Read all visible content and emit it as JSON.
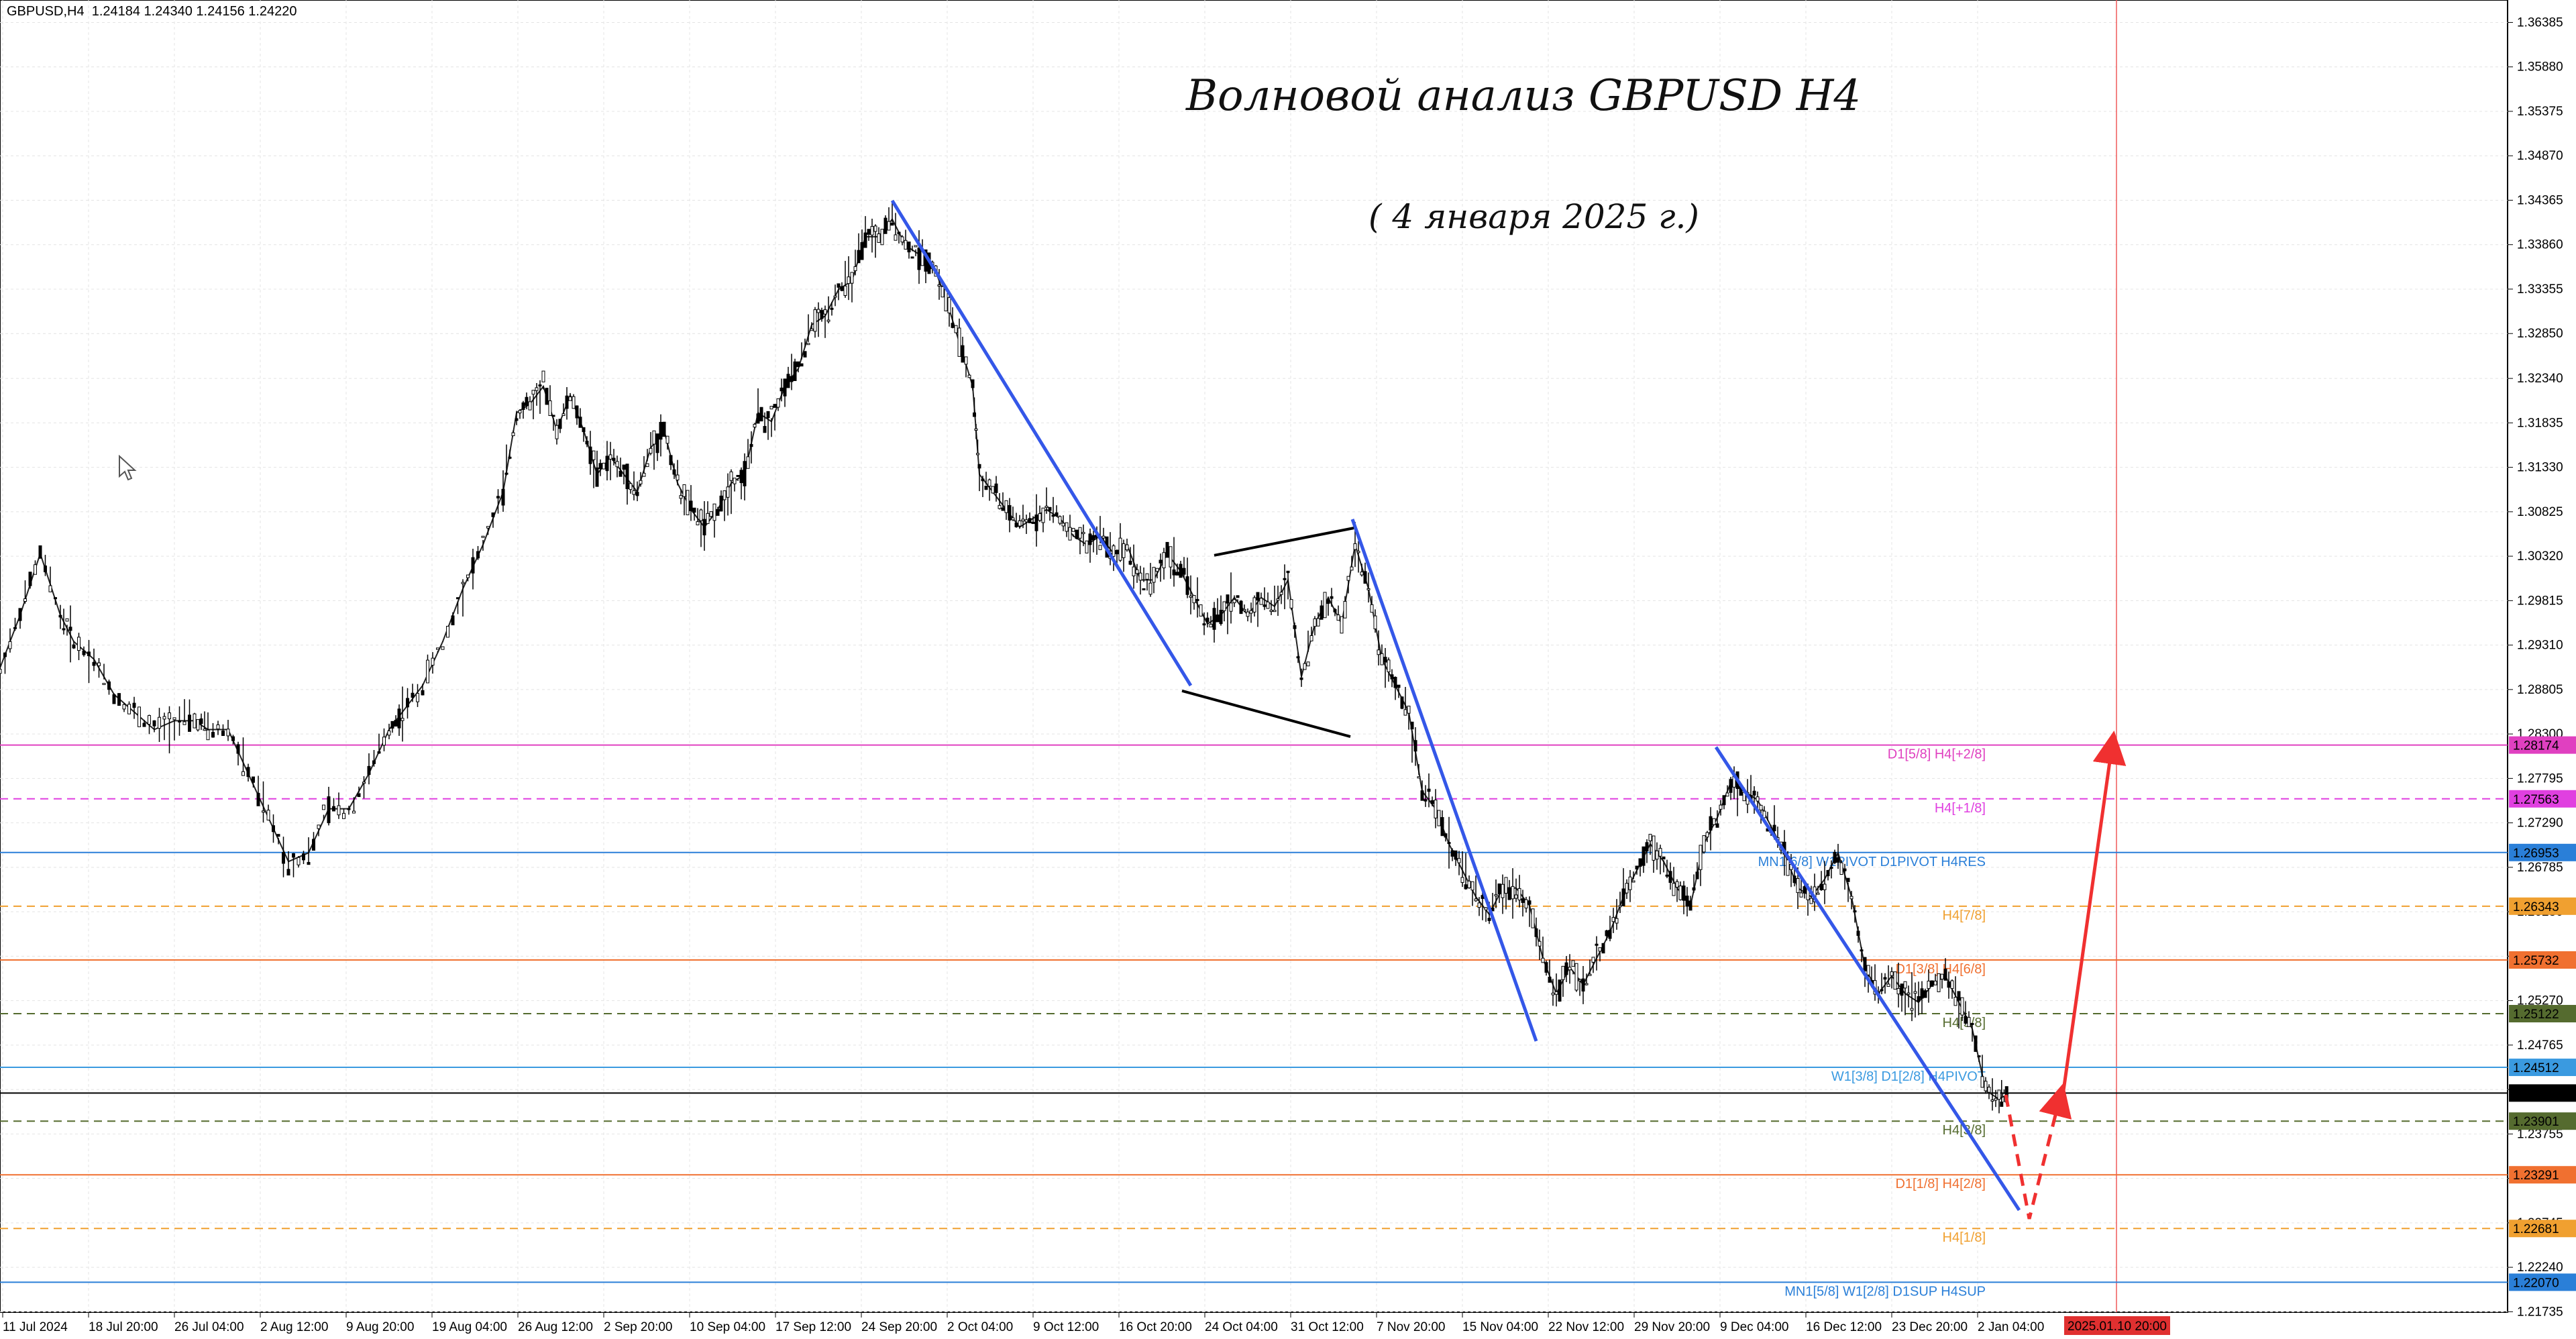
{
  "header": {
    "symbol_info": "GBPUSD,H4  1.24184 1.24340 1.24156 1.24220"
  },
  "title": {
    "main": "Волновой анализ GBPUSD H4",
    "date": "( 4 января 2025 г.)"
  },
  "chart_data": {
    "type": "candlestick",
    "symbol": "GBPUSD",
    "timeframe": "H4",
    "ohlc_last": {
      "open": 1.24184,
      "high": 1.2434,
      "low": 1.24156,
      "close": 1.2422
    },
    "ylim": [
      1.2173,
      1.3664
    ],
    "price_ticks": [
      "1.36385",
      "1.35880",
      "1.35375",
      "1.34870",
      "1.34365",
      "1.33860",
      "1.33355",
      "1.32850",
      "1.32340",
      "1.31835",
      "1.31330",
      "1.30825",
      "1.30320",
      "1.29815",
      "1.29310",
      "1.28805",
      "1.28300",
      "1.27795",
      "1.27290",
      "1.26785",
      "1.26280",
      "1.25775",
      "1.25270",
      "1.24765",
      "1.24260",
      "1.23755",
      "1.23250",
      "1.22745",
      "1.22240",
      "1.21735"
    ],
    "time_ticks": [
      "11 Jul 2024",
      "18 Jul 20:00",
      "26 Jul 04:00",
      "2 Aug 12:00",
      "9 Aug 20:00",
      "19 Aug 04:00",
      "26 Aug 12:00",
      "2 Sep 20:00",
      "10 Sep 04:00",
      "17 Sep 12:00",
      "24 Sep 20:00",
      "2 Oct 04:00",
      "9 Oct 12:00",
      "16 Oct 20:00",
      "24 Oct 04:00",
      "31 Oct 12:00",
      "7 Nov 20:00",
      "15 Nov 04:00",
      "22 Nov 12:00",
      "29 Nov 20:00",
      "9 Dec 04:00",
      "16 Dec 12:00",
      "23 Dec 20:00",
      "2 Jan 04:00"
    ],
    "time_cursor_label": "2025.01.10 20:00",
    "price_path": [
      [
        0,
        1.2905
      ],
      [
        30,
        1.2965
      ],
      [
        60,
        1.3035
      ],
      [
        90,
        1.2965
      ],
      [
        110,
        1.2935
      ],
      [
        140,
        1.2915
      ],
      [
        170,
        1.2875
      ],
      [
        200,
        1.2855
      ],
      [
        230,
        1.2835
      ],
      [
        260,
        1.2845
      ],
      [
        290,
        1.2845
      ],
      [
        310,
        1.2835
      ],
      [
        340,
        1.2835
      ],
      [
        370,
        1.2785
      ],
      [
        400,
        1.2735
      ],
      [
        430,
        1.2685
      ],
      [
        460,
        1.2695
      ],
      [
        490,
        1.2745
      ],
      [
        520,
        1.2745
      ],
      [
        550,
        1.2785
      ],
      [
        580,
        1.2835
      ],
      [
        600,
        1.2855
      ],
      [
        630,
        1.2885
      ],
      [
        660,
        1.2935
      ],
      [
        690,
        1.2995
      ],
      [
        720,
        1.3045
      ],
      [
        750,
        1.3105
      ],
      [
        770,
        1.3195
      ],
      [
        790,
        1.3205
      ],
      [
        810,
        1.3225
      ],
      [
        830,
        1.3175
      ],
      [
        850,
        1.3215
      ],
      [
        870,
        1.3175
      ],
      [
        890,
        1.3125
      ],
      [
        910,
        1.3145
      ],
      [
        930,
        1.3125
      ],
      [
        950,
        1.3105
      ],
      [
        970,
        1.3155
      ],
      [
        990,
        1.3175
      ],
      [
        1010,
        1.3115
      ],
      [
        1030,
        1.3085
      ],
      [
        1050,
        1.3065
      ],
      [
        1070,
        1.3085
      ],
      [
        1090,
        1.3115
      ],
      [
        1110,
        1.3125
      ],
      [
        1130,
        1.3195
      ],
      [
        1150,
        1.3185
      ],
      [
        1170,
        1.3225
      ],
      [
        1190,
        1.3245
      ],
      [
        1210,
        1.3295
      ],
      [
        1230,
        1.3305
      ],
      [
        1250,
        1.3335
      ],
      [
        1270,
        1.3345
      ],
      [
        1290,
        1.3395
      ],
      [
        1310,
        1.3395
      ],
      [
        1330,
        1.3415
      ],
      [
        1350,
        1.3385
      ],
      [
        1370,
        1.3375
      ],
      [
        1390,
        1.3365
      ],
      [
        1410,
        1.3325
      ],
      [
        1430,
        1.3275
      ],
      [
        1450,
        1.3225
      ],
      [
        1460,
        1.3125
      ],
      [
        1480,
        1.3105
      ],
      [
        1500,
        1.3085
      ],
      [
        1520,
        1.3065
      ],
      [
        1540,
        1.3075
      ],
      [
        1560,
        1.3085
      ],
      [
        1580,
        1.3075
      ],
      [
        1600,
        1.3055
      ],
      [
        1620,
        1.3045
      ],
      [
        1640,
        1.3055
      ],
      [
        1660,
        1.3035
      ],
      [
        1680,
        1.3045
      ],
      [
        1700,
        1.3005
      ],
      [
        1720,
        1.3005
      ],
      [
        1740,
        1.3035
      ],
      [
        1760,
        1.3015
      ],
      [
        1780,
        1.2985
      ],
      [
        1800,
        1.2955
      ],
      [
        1820,
        1.2965
      ],
      [
        1840,
        1.2985
      ],
      [
        1860,
        1.2965
      ],
      [
        1880,
        1.2985
      ],
      [
        1900,
        1.2975
      ],
      [
        1920,
        1.3005
      ],
      [
        1940,
        1.2895
      ],
      [
        1960,
        1.2955
      ],
      [
        1980,
        1.2985
      ],
      [
        2000,
        1.2955
      ],
      [
        2020,
        1.3045
      ],
      [
        2040,
        1.2995
      ],
      [
        2060,
        1.2915
      ],
      [
        2080,
        1.2885
      ],
      [
        2100,
        1.2855
      ],
      [
        2120,
        1.2765
      ],
      [
        2140,
        1.2745
      ],
      [
        2160,
        1.2705
      ],
      [
        2180,
        1.2675
      ],
      [
        2200,
        1.2645
      ],
      [
        2220,
        1.2625
      ],
      [
        2240,
        1.2655
      ],
      [
        2260,
        1.2655
      ],
      [
        2280,
        1.2635
      ],
      [
        2300,
        1.2575
      ],
      [
        2320,
        1.2535
      ],
      [
        2340,
        1.2565
      ],
      [
        2360,
        1.2545
      ],
      [
        2380,
        1.2575
      ],
      [
        2400,
        1.2605
      ],
      [
        2420,
        1.2645
      ],
      [
        2440,
        1.2675
      ],
      [
        2460,
        1.2705
      ],
      [
        2480,
        1.2685
      ],
      [
        2500,
        1.2655
      ],
      [
        2520,
        1.2635
      ],
      [
        2540,
        1.2705
      ],
      [
        2560,
        1.2735
      ],
      [
        2580,
        1.2775
      ],
      [
        2600,
        1.2765
      ],
      [
        2620,
        1.2755
      ],
      [
        2640,
        1.2725
      ],
      [
        2660,
        1.2695
      ],
      [
        2680,
        1.2655
      ],
      [
        2700,
        1.2645
      ],
      [
        2720,
        1.2665
      ],
      [
        2740,
        1.2695
      ],
      [
        2760,
        1.2645
      ],
      [
        2780,
        1.2565
      ],
      [
        2800,
        1.2535
      ],
      [
        2820,
        1.2555
      ],
      [
        2840,
        1.2535
      ],
      [
        2860,
        1.2525
      ],
      [
        2880,
        1.2545
      ],
      [
        2900,
        1.2555
      ],
      [
        2920,
        1.2525
      ],
      [
        2940,
        1.2495
      ],
      [
        2960,
        1.2425
      ],
      [
        2980,
        1.2415
      ],
      [
        2995,
        1.2422
      ]
    ],
    "levels": [
      {
        "price": 1.28174,
        "label": "D1[5/8] H4[+2/8]",
        "tag": "1.28174",
        "color": "#e040c0",
        "dash": false
      },
      {
        "price": 1.27563,
        "label": "H4[+1/8]",
        "tag": "1.27563",
        "color": "#e040e0",
        "dash": true
      },
      {
        "price": 1.26953,
        "label": "MN1[6/8] W1PIVOT D1PIVOT H4RES",
        "tag": "1.26953",
        "color": "#2a7fd8",
        "dash": false
      },
      {
        "price": 1.26343,
        "label": "H4[7/8]",
        "tag": "1.26343",
        "color": "#f0a030",
        "dash": true
      },
      {
        "price": 1.25732,
        "label": "D1[3/8] H4[6/8]",
        "tag": "1.25732",
        "color": "#f07030",
        "dash": false
      },
      {
        "price": 1.25122,
        "label": "H4[5/8]",
        "tag": "1.25122",
        "color": "#556b2f",
        "dash": true
      },
      {
        "price": 1.24512,
        "label": "W1[3/8] D1[2/8] H4PIVOT",
        "tag": "1.24512",
        "color": "#3a9ae0",
        "dash": false
      },
      {
        "price": 1.2422,
        "label": "",
        "tag": "1.24220",
        "color": "#000000",
        "dash": false
      },
      {
        "price": 1.23901,
        "label": "H4[3/8]",
        "tag": "1.23901",
        "color": "#556b2f",
        "dash": true
      },
      {
        "price": 1.23291,
        "label": "D1[1/8] H4[2/8]",
        "tag": "1.23291",
        "color": "#f07030",
        "dash": false
      },
      {
        "price": 1.22681,
        "label": "H4[1/8]",
        "tag": "1.22681",
        "color": "#f0a030",
        "dash": true
      },
      {
        "price": 1.2207,
        "label": "MN1[5/8] W1[2/8] D1SUP H4SUP",
        "tag": "1.22070",
        "color": "#2a7fd8",
        "dash": false
      }
    ],
    "drawings": {
      "blue_trend_lines": [
        [
          [
            1330,
            1.3436
          ],
          [
            1775,
            1.2885
          ]
        ],
        [
          [
            2016,
            1.3074
          ],
          [
            2290,
            1.2481
          ]
        ],
        [
          [
            2558,
            1.2815
          ],
          [
            3010,
            1.2289
          ]
        ]
      ],
      "black_triangle_lines": [
        [
          [
            1810,
            1.3033
          ],
          [
            2018,
            1.3064
          ]
        ],
        [
          [
            1762,
            1.2879
          ],
          [
            2013,
            1.2827
          ]
        ]
      ],
      "red_dashed_forecast": [
        [
          2990,
          1.242
        ],
        [
          3025,
          1.2279
        ],
        [
          3070,
          1.2415
        ]
      ],
      "red_solid_forecast": [
        [
          3072,
          1.2403
        ],
        [
          3148,
          1.2815
        ]
      ]
    }
  }
}
